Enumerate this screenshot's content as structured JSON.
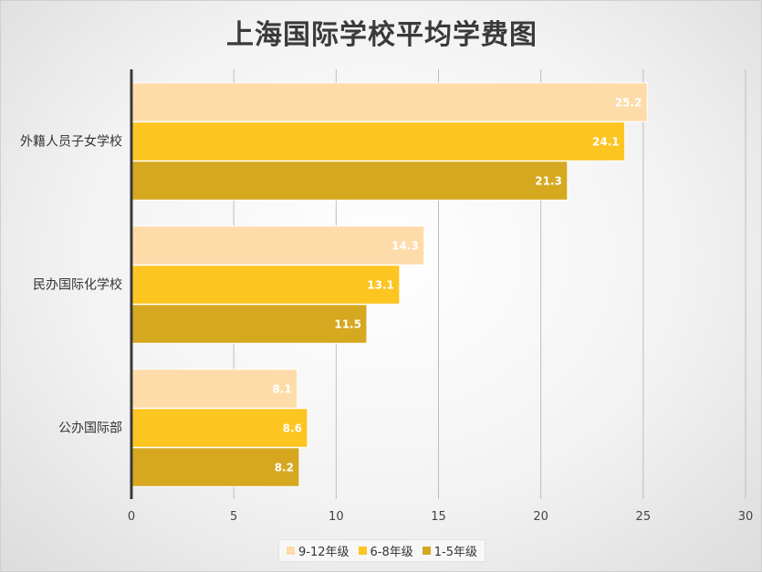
{
  "chart_data": {
    "type": "bar",
    "orientation": "horizontal",
    "title": "上海国际学校平均学费图",
    "categories": [
      "外籍人员子女学校",
      "民办国际化学校",
      "公办国际部"
    ],
    "series": [
      {
        "name": "9-12年级",
        "color": "#FDDCAA",
        "values": [
          25.2,
          14.3,
          8.1
        ]
      },
      {
        "name": "6-8年级",
        "color": "#FDC520",
        "values": [
          24.1,
          13.1,
          8.6
        ]
      },
      {
        "name": "1-5年级",
        "color": "#D5A820",
        "values": [
          21.3,
          11.5,
          8.2
        ]
      }
    ],
    "xlim": [
      0,
      30
    ],
    "xticks": [
      "0",
      "5",
      "10",
      "15",
      "20",
      "25",
      "30"
    ],
    "grid": true,
    "legend_position": "bottom"
  }
}
